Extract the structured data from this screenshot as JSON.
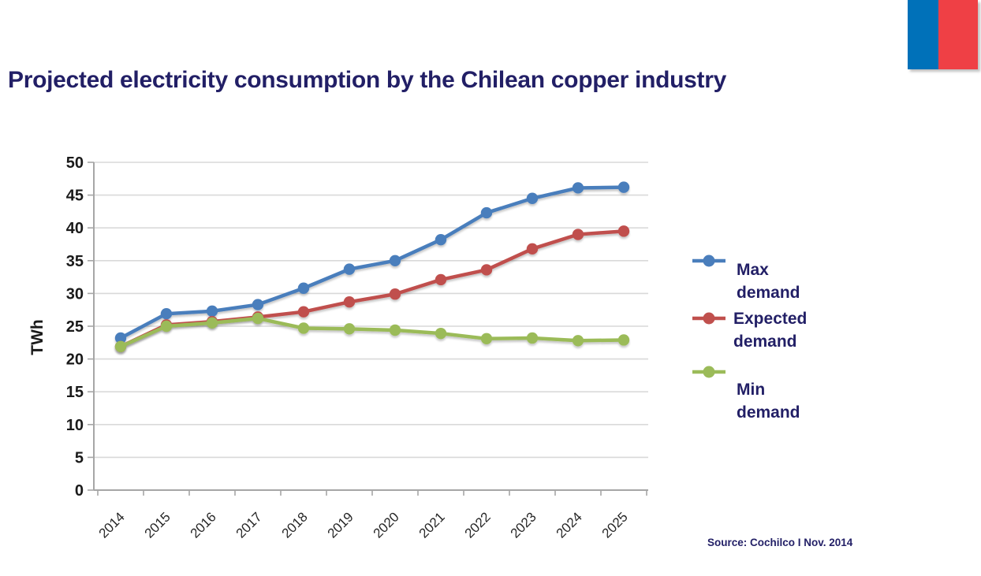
{
  "title": "Projected electricity consumption by the Chilean copper industry",
  "source_note": "Source: Cochilco I Nov. 2014",
  "flag": {
    "blue_color": "#0071B9",
    "red_color": "#EF4045"
  },
  "colors": {
    "title_text": "#221F66",
    "axis_text": "#1A1A1A",
    "gridline": "#D9D9D9",
    "axis_line": "#A6A6A6"
  },
  "chart_data": {
    "type": "line",
    "title": "",
    "xlabel": "",
    "ylabel": "TWh",
    "ylim": [
      0,
      50
    ],
    "ytick_step": 5,
    "grid": true,
    "legend_position": "right",
    "categories": [
      "2014",
      "2015",
      "2016",
      "2017",
      "2018",
      "2019",
      "2020",
      "2021",
      "2022",
      "2023",
      "2024",
      "2025"
    ],
    "series": [
      {
        "name": "Max demand",
        "color": "#4A7EBC",
        "values": [
          23.2,
          26.9,
          27.3,
          28.3,
          30.8,
          33.7,
          35.0,
          38.2,
          42.3,
          44.5,
          46.1,
          46.2
        ]
      },
      {
        "name": "Expected demand",
        "color": "#C0504D",
        "values": [
          21.9,
          25.2,
          25.7,
          26.4,
          27.2,
          28.7,
          29.9,
          32.1,
          33.6,
          36.8,
          39.0,
          39.5
        ]
      },
      {
        "name": "Min demand",
        "color": "#9BBB59",
        "values": [
          21.9,
          25.0,
          25.5,
          26.2,
          24.7,
          24.6,
          24.4,
          23.9,
          23.1,
          23.2,
          22.8,
          22.9
        ]
      }
    ],
    "legend_items": [
      {
        "series": "Max demand",
        "lines": [
          "Max demand"
        ]
      },
      {
        "series": "Expected demand",
        "lines": [
          "Expected",
          "demand"
        ]
      },
      {
        "series": "Min demand",
        "lines": [
          "Min",
          "demand"
        ]
      }
    ]
  }
}
